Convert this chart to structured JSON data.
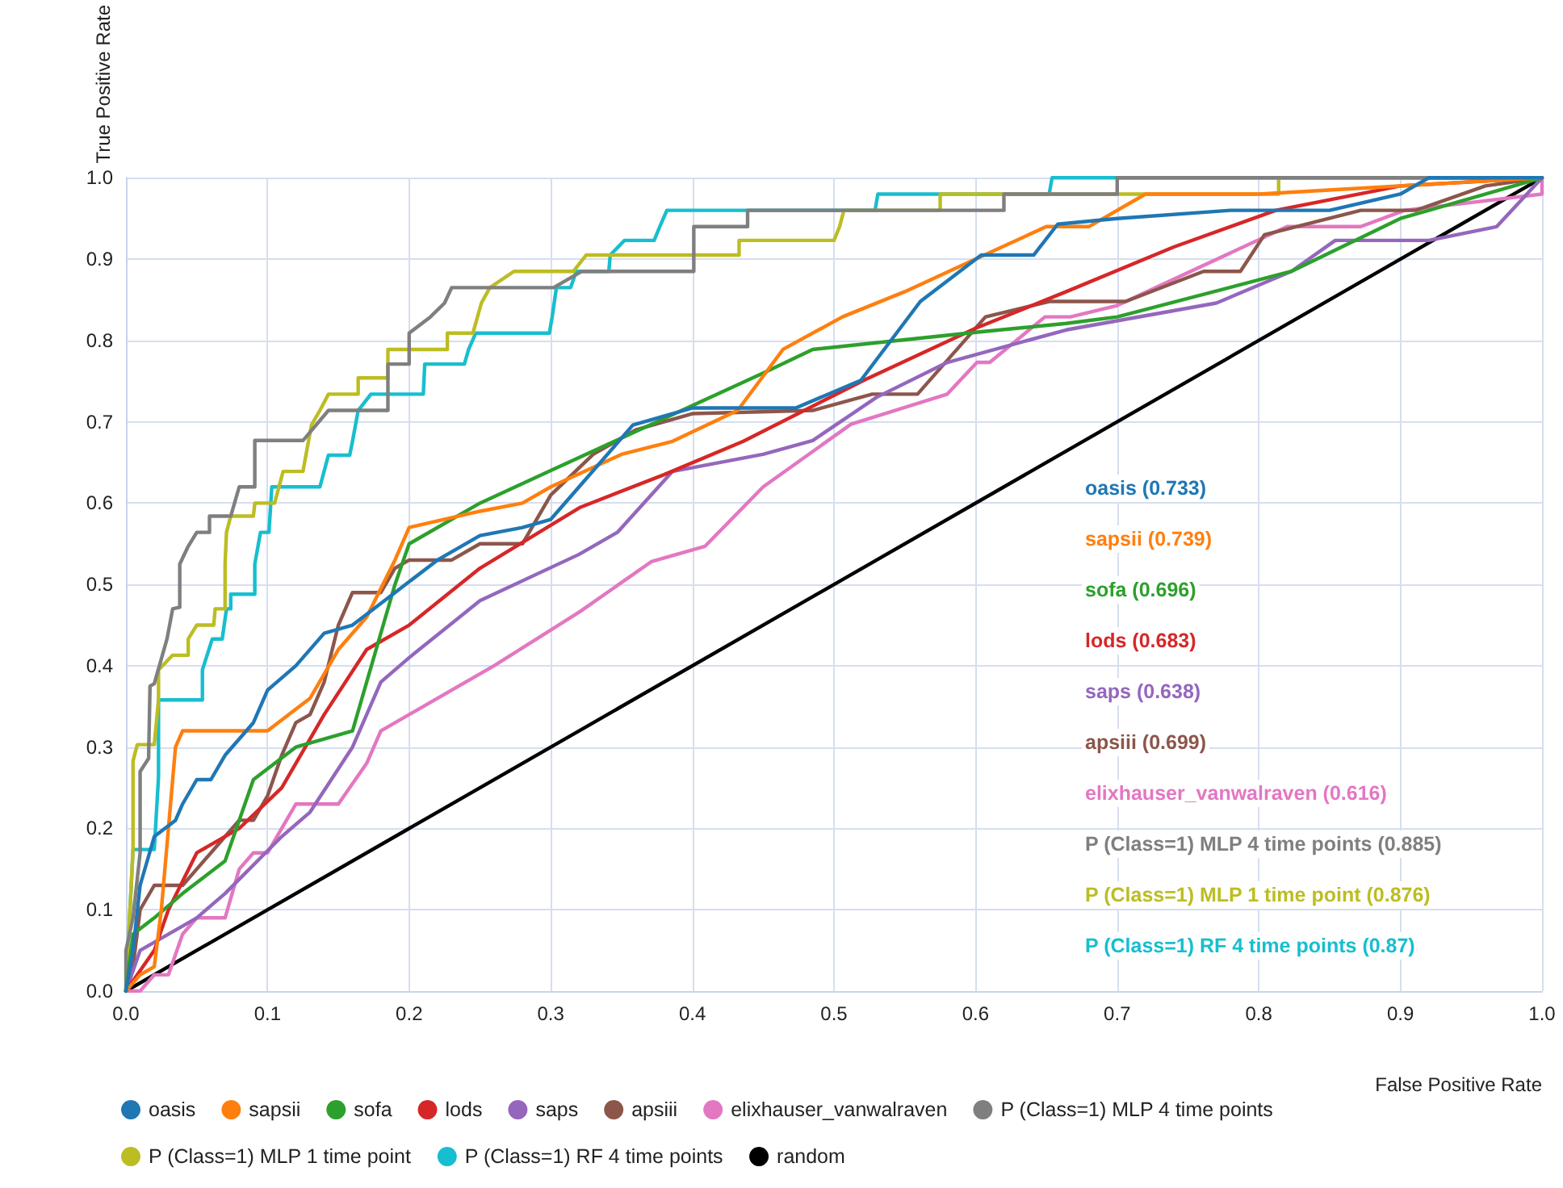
{
  "chart_data": {
    "type": "line",
    "xlabel": "False Positive Rate",
    "ylabel": "True Positive Rate",
    "xlim": [
      0,
      1
    ],
    "ylim": [
      0,
      1
    ],
    "xticks": [
      {
        "value": 0,
        "label": "0.0"
      },
      0.1,
      0.2,
      0.3,
      0.4,
      0.5,
      0.6,
      0.7,
      0.8,
      0.9,
      {
        "value": 1,
        "label": "1.0"
      }
    ],
    "yticks": [
      {
        "value": 0,
        "label": "0.0"
      },
      0.1,
      0.2,
      0.3,
      0.4,
      0.5,
      0.6,
      0.7,
      0.8,
      0.9,
      {
        "value": 1,
        "label": "1.0"
      }
    ],
    "grid": true,
    "legend": "bottom",
    "marker": "none",
    "line_style": "solid",
    "annotations": [
      "oasis (0.733)",
      "sapsii (0.739)",
      "sofa (0.696)",
      "lods (0.683)",
      "saps (0.638)",
      "apsiii (0.699)",
      "elixhauser_vanwalraven (0.616)",
      "P (Class=1) MLP 4 time points (0.885)",
      "P (Class=1) MLP 1 time point (0.876)",
      "P (Class=1) RF 4 time points (0.87)"
    ],
    "series": [
      {
        "name": "oasis",
        "color": "#1f77b4",
        "x": [
          0,
          0.005,
          0.01,
          0.02,
          0.035,
          0.04,
          0.05,
          0.06,
          0.07,
          0.09,
          0.1,
          0.12,
          0.14,
          0.16,
          0.19,
          0.22,
          0.25,
          0.28,
          0.3,
          0.32,
          0.358,
          0.4,
          0.42,
          0.473,
          0.519,
          0.561,
          0.604,
          0.641,
          0.658,
          0.7,
          0.78,
          0.85,
          0.9,
          0.92,
          1
        ],
        "values": [
          0,
          0.05,
          0.13,
          0.19,
          0.21,
          0.23,
          0.26,
          0.26,
          0.29,
          0.33,
          0.37,
          0.4,
          0.44,
          0.45,
          0.49,
          0.53,
          0.56,
          0.57,
          0.58,
          0.62,
          0.696,
          0.717,
          0.717,
          0.717,
          0.751,
          0.848,
          0.905,
          0.905,
          0.943,
          0.95,
          0.96,
          0.96,
          0.98,
          1,
          1
        ]
      },
      {
        "name": "sapsii",
        "color": "#ff7f0e",
        "x": [
          0,
          0.01,
          0.02,
          0.025,
          0.03,
          0.035,
          0.04,
          0.1,
          0.13,
          0.15,
          0.17,
          0.19,
          0.2,
          0.25,
          0.28,
          0.3,
          0.35,
          0.386,
          0.432,
          0.464,
          0.506,
          0.55,
          0.6,
          0.65,
          0.68,
          0.72,
          0.8,
          1
        ],
        "values": [
          0,
          0.02,
          0.03,
          0.1,
          0.2,
          0.3,
          0.32,
          0.32,
          0.36,
          0.42,
          0.46,
          0.53,
          0.57,
          0.59,
          0.6,
          0.62,
          0.66,
          0.676,
          0.714,
          0.789,
          0.829,
          0.86,
          0.9,
          0.94,
          0.94,
          0.98,
          0.98,
          1
        ]
      },
      {
        "name": "sofa",
        "color": "#2ca02c",
        "x": [
          0,
          0.005,
          0.02,
          0.04,
          0.07,
          0.09,
          0.12,
          0.16,
          0.19,
          0.2,
          0.25,
          0.3,
          0.4,
          0.45,
          0.485,
          0.6,
          0.664,
          0.7,
          0.823,
          0.9,
          0.986,
          1
        ],
        "values": [
          0,
          0.07,
          0.09,
          0.12,
          0.16,
          0.26,
          0.3,
          0.32,
          0.5,
          0.55,
          0.6,
          0.64,
          0.72,
          0.76,
          0.789,
          0.81,
          0.821,
          0.829,
          0.885,
          0.95,
          0.993,
          1
        ]
      },
      {
        "name": "lods",
        "color": "#d62728",
        "x": [
          0,
          0.02,
          0.03,
          0.05,
          0.08,
          0.11,
          0.14,
          0.17,
          0.2,
          0.25,
          0.321,
          0.38,
          0.436,
          0.521,
          0.6,
          0.664,
          0.74,
          0.812,
          0.9,
          1
        ],
        "values": [
          0,
          0.05,
          0.1,
          0.17,
          0.2,
          0.25,
          0.34,
          0.42,
          0.45,
          0.52,
          0.595,
          0.635,
          0.676,
          0.751,
          0.815,
          0.86,
          0.915,
          0.96,
          0.99,
          1
        ]
      },
      {
        "name": "saps",
        "color": "#9467bd",
        "x": [
          0,
          0.01,
          0.05,
          0.07,
          0.11,
          0.13,
          0.16,
          0.18,
          0.2,
          0.25,
          0.32,
          0.347,
          0.386,
          0.45,
          0.485,
          0.53,
          0.58,
          0.664,
          0.77,
          0.823,
          0.854,
          0.92,
          0.968,
          1
        ],
        "values": [
          0,
          0.05,
          0.09,
          0.12,
          0.19,
          0.22,
          0.3,
          0.38,
          0.41,
          0.48,
          0.537,
          0.564,
          0.639,
          0.66,
          0.677,
          0.73,
          0.773,
          0.813,
          0.846,
          0.885,
          0.923,
          0.923,
          0.94,
          1
        ]
      },
      {
        "name": "apsiii",
        "color": "#8c564b",
        "x": [
          0,
          0.005,
          0.01,
          0.02,
          0.04,
          0.05,
          0.06,
          0.07,
          0.08,
          0.09,
          0.1,
          0.11,
          0.12,
          0.13,
          0.14,
          0.15,
          0.16,
          0.18,
          0.19,
          0.2,
          0.23,
          0.25,
          0.28,
          0.3,
          0.33,
          0.36,
          0.4,
          0.485,
          0.527,
          0.559,
          0.607,
          0.652,
          0.706,
          0.761,
          0.787,
          0.804,
          0.872,
          0.911,
          0.96,
          1
        ],
        "values": [
          0,
          0.03,
          0.1,
          0.13,
          0.13,
          0.15,
          0.17,
          0.19,
          0.21,
          0.21,
          0.24,
          0.29,
          0.33,
          0.34,
          0.38,
          0.45,
          0.49,
          0.49,
          0.52,
          0.53,
          0.53,
          0.55,
          0.55,
          0.61,
          0.66,
          0.69,
          0.71,
          0.714,
          0.734,
          0.734,
          0.829,
          0.848,
          0.848,
          0.885,
          0.885,
          0.93,
          0.96,
          0.96,
          0.99,
          1
        ]
      },
      {
        "name": "elixhauser_vanwalraven",
        "color": "#e377c2",
        "x": [
          0,
          0.01,
          0.02,
          0.03,
          0.04,
          0.05,
          0.07,
          0.08,
          0.09,
          0.1,
          0.12,
          0.15,
          0.17,
          0.18,
          0.2,
          0.23,
          0.26,
          0.321,
          0.371,
          0.409,
          0.45,
          0.512,
          0.58,
          0.601,
          0.61,
          0.649,
          0.667,
          0.7,
          0.82,
          0.872,
          0.903,
          1,
          1
        ],
        "values": [
          0,
          0,
          0.02,
          0.02,
          0.07,
          0.09,
          0.09,
          0.15,
          0.17,
          0.17,
          0.23,
          0.23,
          0.28,
          0.32,
          0.34,
          0.37,
          0.4,
          0.467,
          0.528,
          0.547,
          0.62,
          0.697,
          0.734,
          0.773,
          0.773,
          0.829,
          0.829,
          0.843,
          0.94,
          0.94,
          0.96,
          0.98,
          1
        ]
      },
      {
        "name": "P (Class=1) MLP 4 time points",
        "color": "#7f7f7f",
        "x": [
          0,
          0,
          0.005,
          0.01,
          0.01,
          0.016,
          0.017,
          0.02,
          0.029,
          0.033,
          0.038,
          0.038,
          0.044,
          0.05,
          0.059,
          0.059,
          0.074,
          0.08,
          0.091,
          0.091,
          0.125,
          0.143,
          0.185,
          0.185,
          0.2,
          0.2,
          0.215,
          0.225,
          0.23,
          0.302,
          0.322,
          0.401,
          0.401,
          0.439,
          0.439,
          0.62,
          0.62,
          0.7,
          0.7,
          1
        ],
        "values": [
          0,
          0.05,
          0.09,
          0.17,
          0.27,
          0.286,
          0.375,
          0.378,
          0.433,
          0.47,
          0.472,
          0.525,
          0.547,
          0.564,
          0.564,
          0.584,
          0.584,
          0.62,
          0.62,
          0.677,
          0.677,
          0.714,
          0.714,
          0.771,
          0.771,
          0.809,
          0.829,
          0.846,
          0.865,
          0.865,
          0.885,
          0.885,
          0.94,
          0.94,
          0.96,
          0.96,
          0.98,
          0.98,
          1,
          1
        ]
      },
      {
        "name": "P (Class=1) MLP 1 time point",
        "color": "#bcbd22",
        "x": [
          0,
          0.005,
          0.005,
          0.008,
          0.02,
          0.023,
          0.023,
          0.033,
          0.044,
          0.044,
          0.05,
          0.062,
          0.063,
          0.07,
          0.07,
          0.071,
          0.074,
          0.09,
          0.091,
          0.105,
          0.111,
          0.125,
          0.131,
          0.137,
          0.143,
          0.164,
          0.164,
          0.185,
          0.185,
          0.227,
          0.227,
          0.245,
          0.251,
          0.257,
          0.274,
          0.316,
          0.325,
          0.433,
          0.433,
          0.5,
          0.504,
          0.507,
          0.575,
          0.575,
          0.814,
          0.814,
          1
        ],
        "values": [
          0,
          0.174,
          0.283,
          0.303,
          0.303,
          0.358,
          0.395,
          0.413,
          0.413,
          0.433,
          0.45,
          0.45,
          0.47,
          0.47,
          0.525,
          0.564,
          0.584,
          0.584,
          0.6,
          0.6,
          0.639,
          0.639,
          0.696,
          0.714,
          0.734,
          0.734,
          0.754,
          0.754,
          0.789,
          0.789,
          0.809,
          0.809,
          0.846,
          0.865,
          0.885,
          0.885,
          0.905,
          0.905,
          0.923,
          0.923,
          0.94,
          0.96,
          0.96,
          0.98,
          0.98,
          1,
          1
        ]
      },
      {
        "name": "P (Class=1) RF 4 time points",
        "color": "#17becf",
        "x": [
          0,
          0.005,
          0.02,
          0.023,
          0.023,
          0.054,
          0.054,
          0.061,
          0.068,
          0.071,
          0.074,
          0.074,
          0.091,
          0.091,
          0.095,
          0.101,
          0.103,
          0.137,
          0.143,
          0.158,
          0.16,
          0.164,
          0.173,
          0.21,
          0.211,
          0.239,
          0.242,
          0.247,
          0.299,
          0.301,
          0.304,
          0.314,
          0.318,
          0.341,
          0.342,
          0.352,
          0.373,
          0.377,
          0.382,
          0.529,
          0.531,
          0.652,
          0.654,
          1
        ],
        "values": [
          0,
          0.174,
          0.174,
          0.263,
          0.358,
          0.358,
          0.395,
          0.433,
          0.433,
          0.47,
          0.47,
          0.488,
          0.488,
          0.525,
          0.564,
          0.564,
          0.62,
          0.62,
          0.659,
          0.659,
          0.676,
          0.714,
          0.734,
          0.734,
          0.771,
          0.771,
          0.789,
          0.809,
          0.809,
          0.829,
          0.865,
          0.865,
          0.885,
          0.885,
          0.905,
          0.923,
          0.923,
          0.94,
          0.96,
          0.96,
          0.98,
          0.98,
          1,
          1
        ]
      },
      {
        "name": "random",
        "color": "#000000",
        "x": [
          0,
          1
        ],
        "values": [
          0,
          1
        ]
      }
    ]
  }
}
